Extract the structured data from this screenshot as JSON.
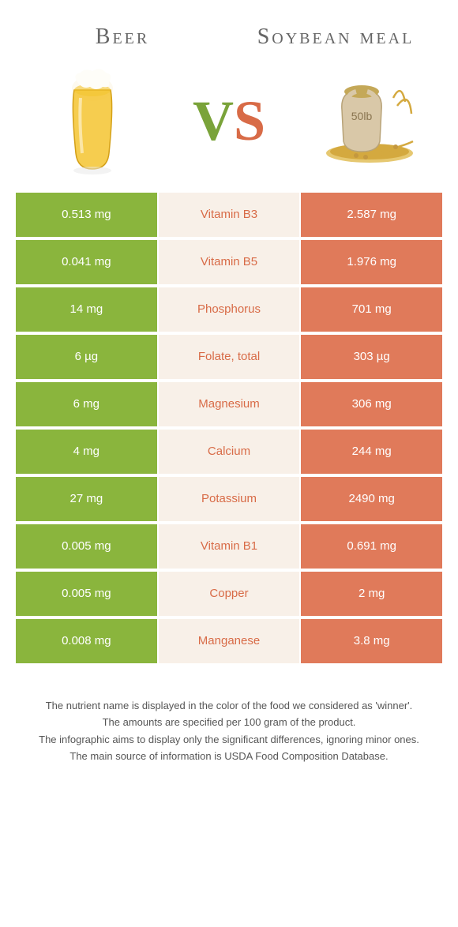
{
  "header": {
    "food1": "Beer",
    "food2": "Soybean meal"
  },
  "vs": {
    "v": "V",
    "s": "S"
  },
  "colors": {
    "green": "#8ab53d",
    "orange": "#e07a5a",
    "cream": "#f8f0e8",
    "nutrient_green": "#7aa33a",
    "nutrient_orange": "#d86b47"
  },
  "rows": [
    {
      "left": "0.513 mg",
      "mid": "Vitamin B3",
      "right": "2.587 mg",
      "winner": "orange"
    },
    {
      "left": "0.041 mg",
      "mid": "Vitamin B5",
      "right": "1.976 mg",
      "winner": "orange"
    },
    {
      "left": "14 mg",
      "mid": "Phosphorus",
      "right": "701 mg",
      "winner": "orange"
    },
    {
      "left": "6 µg",
      "mid": "Folate, total",
      "right": "303 µg",
      "winner": "orange"
    },
    {
      "left": "6 mg",
      "mid": "Magnesium",
      "right": "306 mg",
      "winner": "orange"
    },
    {
      "left": "4 mg",
      "mid": "Calcium",
      "right": "244 mg",
      "winner": "orange"
    },
    {
      "left": "27 mg",
      "mid": "Potassium",
      "right": "2490 mg",
      "winner": "orange"
    },
    {
      "left": "0.005 mg",
      "mid": "Vitamin B1",
      "right": "0.691 mg",
      "winner": "orange"
    },
    {
      "left": "0.005 mg",
      "mid": "Copper",
      "right": "2 mg",
      "winner": "orange"
    },
    {
      "left": "0.008 mg",
      "mid": "Manganese",
      "right": "3.8 mg",
      "winner": "orange"
    }
  ],
  "footer": {
    "line1": "The nutrient name is displayed in the color of the food we considered as 'winner'.",
    "line2": "The amounts are specified per 100 gram of the product.",
    "line3": "The infographic aims to display only the significant differences, ignoring minor ones.",
    "line4": "The main source of information is USDA Food Composition Database."
  },
  "icons": {
    "beer": "beer-icon",
    "soybean": "soybean-meal-icon",
    "soybean_label": "50lb"
  }
}
